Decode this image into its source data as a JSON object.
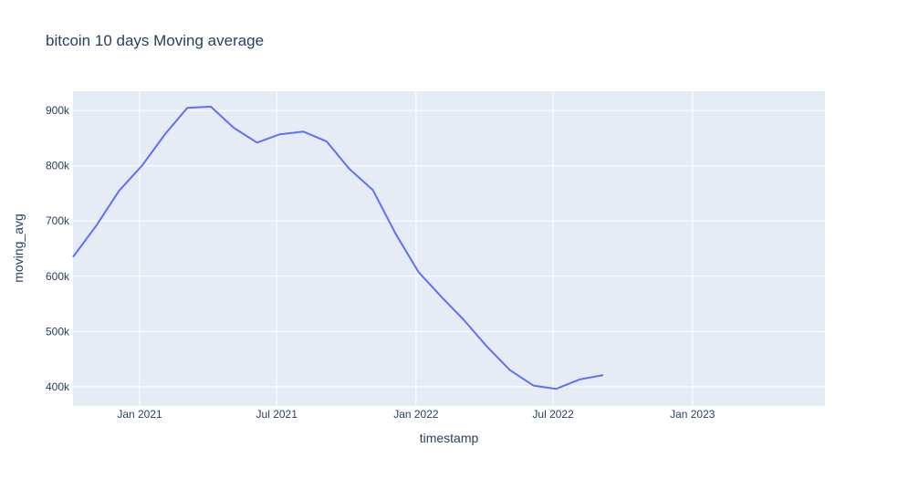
{
  "chart_data": {
    "type": "line",
    "title": "bitcoin 10 days Moving average",
    "xlabel": "timestamp",
    "ylabel": "moving_avg",
    "x_ticks": [
      "2021-01-01",
      "2021-07-01",
      "2022-01-01",
      "2022-07-01",
      "2023-01-01"
    ],
    "x_tick_labels": [
      "Jan 2021",
      "Jul 2021",
      "Jan 2022",
      "Jul 2022",
      "Jan 2023"
    ],
    "y_ticks": [
      400000,
      500000,
      600000,
      700000,
      800000,
      900000
    ],
    "y_tick_labels": [
      "400k",
      "500k",
      "600k",
      "700k",
      "800k",
      "900k"
    ],
    "xlim": [
      "2020-10-05",
      "2023-06-25"
    ],
    "ylim": [
      365000,
      935000
    ],
    "grid": true,
    "colors": {
      "background": "#e5ecf6",
      "grid": "#ffffff",
      "line": "#636efa",
      "text": "#2a3f5f"
    },
    "series": [
      {
        "x": [
          "2020-10-05",
          "2020-11-05",
          "2020-12-05",
          "2021-01-04",
          "2021-02-04",
          "2021-03-05",
          "2021-04-05",
          "2021-05-05",
          "2021-06-05",
          "2021-07-05",
          "2021-08-05",
          "2021-09-05",
          "2021-10-05",
          "2021-11-05",
          "2021-12-05",
          "2022-01-04",
          "2022-02-04",
          "2022-03-05",
          "2022-04-05",
          "2022-05-05",
          "2022-06-05",
          "2022-07-05",
          "2022-08-05",
          "2022-09-05"
        ],
        "y": [
          635000,
          692000,
          755000,
          800000,
          858000,
          905000,
          907000,
          869000,
          842000,
          857000,
          862000,
          844000,
          794000,
          756000,
          677000,
          608000,
          562000,
          521000,
          472000,
          430000,
          402000,
          396000,
          413000,
          421000
        ]
      }
    ]
  }
}
